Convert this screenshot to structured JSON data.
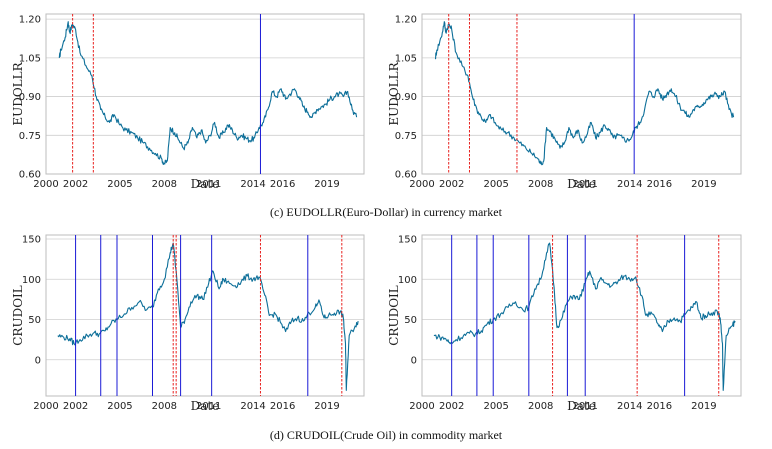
{
  "captions": {
    "c": "(c) EUDOLLR(Euro-Dollar) in currency market",
    "d": "(d) CRUDOIL(Crude Oil) in commodity market"
  },
  "colors": {
    "series": "#0d6f99",
    "red_line": "#e8201e",
    "blue_line": "#1a1ad6",
    "grid": "#cfcfcf",
    "frame": "#bdbdbd"
  },
  "chart_data": [
    {
      "id": "eudollr-left",
      "type": "line",
      "ylabel": "EUDOLLR",
      "xlabel": "Date",
      "xlim": [
        2000,
        2021.5
      ],
      "ylim": [
        0.6,
        1.22
      ],
      "xticks": [
        2000,
        2002,
        2005,
        2008,
        2011,
        2014,
        2016,
        2019
      ],
      "yticks": [
        0.6,
        0.75,
        0.9,
        1.05,
        1.2
      ],
      "ytick_labels": [
        "0.60",
        "0.75",
        "0.90",
        "1.05",
        "1.20"
      ],
      "red_dashed": [
        2001.8,
        2003.2
      ],
      "blue_solid": [
        2014.5
      ],
      "series": {
        "name": "EUDOLLR",
        "x": [
          2000.9,
          2001.0,
          2001.3,
          2001.5,
          2001.6,
          2001.8,
          2002.0,
          2002.3,
          2002.7,
          2003.1,
          2003.4,
          2003.7,
          2004.0,
          2004.3,
          2004.6,
          2005.0,
          2005.4,
          2005.8,
          2006.2,
          2006.6,
          2007.0,
          2007.4,
          2007.8,
          2008.0,
          2008.2,
          2008.4,
          2008.7,
          2009.0,
          2009.3,
          2009.6,
          2009.9,
          2010.2,
          2010.5,
          2010.8,
          2011.1,
          2011.4,
          2011.7,
          2012.0,
          2012.3,
          2012.6,
          2012.9,
          2013.2,
          2013.5,
          2013.8,
          2014.1,
          2014.4,
          2014.7,
          2015.0,
          2015.3,
          2015.6,
          2015.9,
          2016.2,
          2016.5,
          2016.8,
          2017.1,
          2017.4,
          2017.7,
          2018.0,
          2018.3,
          2018.6,
          2018.9,
          2019.2,
          2019.5,
          2019.8,
          2020.1,
          2020.4,
          2020.7,
          2021.0
        ],
        "y": [
          1.05,
          1.08,
          1.13,
          1.19,
          1.15,
          1.18,
          1.16,
          1.07,
          1.02,
          0.98,
          0.9,
          0.85,
          0.82,
          0.8,
          0.83,
          0.79,
          0.77,
          0.76,
          0.74,
          0.72,
          0.7,
          0.68,
          0.66,
          0.64,
          0.65,
          0.78,
          0.76,
          0.73,
          0.7,
          0.72,
          0.78,
          0.74,
          0.77,
          0.72,
          0.75,
          0.8,
          0.74,
          0.76,
          0.79,
          0.77,
          0.74,
          0.75,
          0.74,
          0.73,
          0.74,
          0.78,
          0.8,
          0.85,
          0.92,
          0.9,
          0.93,
          0.89,
          0.91,
          0.93,
          0.9,
          0.86,
          0.84,
          0.82,
          0.85,
          0.86,
          0.87,
          0.89,
          0.9,
          0.91,
          0.9,
          0.92,
          0.85,
          0.82
        ]
      }
    },
    {
      "id": "eudollr-right",
      "type": "line",
      "ylabel": "EUDOLLR",
      "xlabel": "Date",
      "xlim": [
        2000,
        2021.5
      ],
      "ylim": [
        0.6,
        1.22
      ],
      "xticks": [
        2000,
        2002,
        2005,
        2008,
        2011,
        2014,
        2016,
        2019
      ],
      "yticks": [
        0.6,
        0.75,
        0.9,
        1.05,
        1.2
      ],
      "ytick_labels": [
        "0.60",
        "0.75",
        "0.90",
        "1.05",
        "1.20"
      ],
      "red_dashed": [
        2001.8,
        2003.2,
        2006.4
      ],
      "blue_solid": [
        2014.3
      ],
      "series": {
        "name": "EUDOLLR",
        "x": [
          2000.9,
          2001.0,
          2001.3,
          2001.5,
          2001.6,
          2001.8,
          2002.0,
          2002.3,
          2002.7,
          2003.1,
          2003.4,
          2003.7,
          2004.0,
          2004.3,
          2004.6,
          2005.0,
          2005.4,
          2005.8,
          2006.2,
          2006.6,
          2007.0,
          2007.4,
          2007.8,
          2008.0,
          2008.2,
          2008.4,
          2008.7,
          2009.0,
          2009.3,
          2009.6,
          2009.9,
          2010.2,
          2010.5,
          2010.8,
          2011.1,
          2011.4,
          2011.7,
          2012.0,
          2012.3,
          2012.6,
          2012.9,
          2013.2,
          2013.5,
          2013.8,
          2014.1,
          2014.4,
          2014.7,
          2015.0,
          2015.3,
          2015.6,
          2015.9,
          2016.2,
          2016.5,
          2016.8,
          2017.1,
          2017.4,
          2017.7,
          2018.0,
          2018.3,
          2018.6,
          2018.9,
          2019.2,
          2019.5,
          2019.8,
          2020.1,
          2020.4,
          2020.7,
          2021.0
        ],
        "y": [
          1.05,
          1.08,
          1.13,
          1.19,
          1.15,
          1.18,
          1.16,
          1.07,
          1.02,
          0.98,
          0.9,
          0.85,
          0.82,
          0.8,
          0.83,
          0.79,
          0.77,
          0.76,
          0.74,
          0.72,
          0.7,
          0.68,
          0.66,
          0.64,
          0.65,
          0.78,
          0.76,
          0.73,
          0.7,
          0.72,
          0.78,
          0.74,
          0.77,
          0.72,
          0.75,
          0.8,
          0.74,
          0.76,
          0.79,
          0.77,
          0.74,
          0.75,
          0.74,
          0.73,
          0.74,
          0.78,
          0.8,
          0.85,
          0.92,
          0.9,
          0.93,
          0.89,
          0.91,
          0.93,
          0.9,
          0.86,
          0.84,
          0.82,
          0.85,
          0.86,
          0.87,
          0.89,
          0.9,
          0.91,
          0.9,
          0.92,
          0.85,
          0.82
        ]
      }
    },
    {
      "id": "crudoil-left",
      "type": "line",
      "ylabel": "CRUDOIL",
      "xlabel": "Date",
      "xlim": [
        2000,
        2021.5
      ],
      "ylim": [
        -45,
        155
      ],
      "xticks": [
        2000,
        2002,
        2005,
        2008,
        2011,
        2014,
        2016,
        2019
      ],
      "yticks": [
        0,
        50,
        100,
        150
      ],
      "ytick_labels": [
        "0",
        "50",
        "100",
        "150"
      ],
      "red_dashed": [
        2008.6,
        2008.8,
        2014.5,
        2020.0
      ],
      "blue_solid": [
        2002.0,
        2003.7,
        2004.8,
        2007.2,
        2009.1,
        2011.2,
        2017.7
      ],
      "series": {
        "name": "CRUDOIL",
        "x": [
          2000.8,
          2001.2,
          2001.6,
          2001.9,
          2002.3,
          2002.8,
          2003.2,
          2003.6,
          2004.0,
          2004.4,
          2004.8,
          2005.3,
          2005.8,
          2006.3,
          2006.8,
          2007.2,
          2007.6,
          2008.0,
          2008.4,
          2008.6,
          2008.9,
          2009.1,
          2009.4,
          2009.8,
          2010.2,
          2010.6,
          2011.0,
          2011.3,
          2011.7,
          2012.0,
          2012.4,
          2012.8,
          2013.2,
          2013.6,
          2014.0,
          2014.4,
          2014.8,
          2015.1,
          2015.5,
          2015.9,
          2016.2,
          2016.6,
          2017.0,
          2017.4,
          2017.8,
          2018.2,
          2018.5,
          2018.8,
          2019.1,
          2019.5,
          2019.9,
          2020.1,
          2020.25,
          2020.3,
          2020.5,
          2020.9,
          2021.1
        ],
        "y": [
          30,
          28,
          26,
          20,
          25,
          30,
          33,
          32,
          36,
          45,
          50,
          57,
          65,
          72,
          62,
          65,
          88,
          100,
          133,
          145,
          90,
          40,
          50,
          72,
          80,
          75,
          95,
          110,
          88,
          100,
          95,
          92,
          97,
          104,
          100,
          103,
          80,
          55,
          57,
          45,
          35,
          48,
          52,
          48,
          58,
          65,
          72,
          52,
          55,
          58,
          60,
          52,
          20,
          -38,
          30,
          42,
          48
        ]
      }
    },
    {
      "id": "crudoil-right",
      "type": "line",
      "ylabel": "CRUDOIL",
      "xlabel": "Date",
      "xlim": [
        2000,
        2021.5
      ],
      "ylim": [
        -45,
        155
      ],
      "xticks": [
        2000,
        2002,
        2005,
        2008,
        2011,
        2014,
        2016,
        2019
      ],
      "yticks": [
        0,
        50,
        100,
        150
      ],
      "ytick_labels": [
        "0",
        "50",
        "100",
        "150"
      ],
      "red_dashed": [
        2008.8,
        2014.5,
        2020.0
      ],
      "blue_solid": [
        2002.0,
        2003.7,
        2004.8,
        2007.2,
        2009.8,
        2011.0,
        2017.7
      ],
      "series": {
        "name": "CRUDOIL",
        "x": [
          2000.8,
          2001.2,
          2001.6,
          2001.9,
          2002.3,
          2002.8,
          2003.2,
          2003.6,
          2004.0,
          2004.4,
          2004.8,
          2005.3,
          2005.8,
          2006.3,
          2006.8,
          2007.2,
          2007.6,
          2008.0,
          2008.4,
          2008.6,
          2008.9,
          2009.1,
          2009.4,
          2009.8,
          2010.2,
          2010.6,
          2011.0,
          2011.3,
          2011.7,
          2012.0,
          2012.4,
          2012.8,
          2013.2,
          2013.6,
          2014.0,
          2014.4,
          2014.8,
          2015.1,
          2015.5,
          2015.9,
          2016.2,
          2016.6,
          2017.0,
          2017.4,
          2017.8,
          2018.2,
          2018.5,
          2018.8,
          2019.1,
          2019.5,
          2019.9,
          2020.1,
          2020.25,
          2020.3,
          2020.5,
          2020.9,
          2021.1
        ],
        "y": [
          30,
          28,
          26,
          20,
          25,
          30,
          33,
          32,
          36,
          45,
          50,
          57,
          65,
          72,
          62,
          65,
          88,
          100,
          133,
          145,
          90,
          40,
          50,
          72,
          80,
          75,
          95,
          110,
          88,
          100,
          95,
          92,
          97,
          104,
          100,
          103,
          80,
          55,
          57,
          45,
          35,
          48,
          52,
          48,
          58,
          65,
          72,
          52,
          55,
          58,
          60,
          52,
          20,
          -38,
          30,
          42,
          48
        ]
      }
    }
  ]
}
